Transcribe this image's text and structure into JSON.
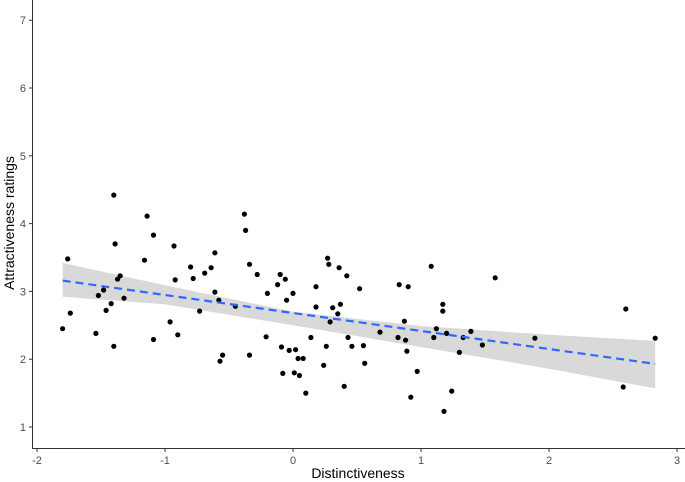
{
  "chart_data": {
    "type": "scatter",
    "xlabel": "Distinctiveness",
    "ylabel": "Attractiveness ratings",
    "xlim": [
      -2.05,
      3.05
    ],
    "ylim": [
      0.75,
      7.05
    ],
    "x_ticks": [
      -2,
      -1,
      0,
      1,
      2,
      3
    ],
    "y_ticks": [
      1,
      2,
      3,
      4,
      5,
      6,
      7
    ],
    "grid": false,
    "points": [
      {
        "x": -1.8,
        "y": 2.45
      },
      {
        "x": -1.76,
        "y": 3.48
      },
      {
        "x": -1.74,
        "y": 2.68
      },
      {
        "x": -1.54,
        "y": 2.38
      },
      {
        "x": -1.52,
        "y": 2.94
      },
      {
        "x": -1.48,
        "y": 3.02
      },
      {
        "x": -1.46,
        "y": 2.72
      },
      {
        "x": -1.42,
        "y": 2.82
      },
      {
        "x": -1.4,
        "y": 4.42
      },
      {
        "x": -1.4,
        "y": 2.19
      },
      {
        "x": -1.39,
        "y": 3.7
      },
      {
        "x": -1.37,
        "y": 3.18
      },
      {
        "x": -1.35,
        "y": 3.23
      },
      {
        "x": -1.32,
        "y": 2.9
      },
      {
        "x": -1.16,
        "y": 3.46
      },
      {
        "x": -1.14,
        "y": 4.11
      },
      {
        "x": -1.09,
        "y": 3.83
      },
      {
        "x": -1.09,
        "y": 2.29
      },
      {
        "x": -0.96,
        "y": 2.55
      },
      {
        "x": -0.93,
        "y": 3.67
      },
      {
        "x": -0.92,
        "y": 3.17
      },
      {
        "x": -0.9,
        "y": 2.36
      },
      {
        "x": -0.8,
        "y": 3.36
      },
      {
        "x": -0.78,
        "y": 3.19
      },
      {
        "x": -0.73,
        "y": 2.71
      },
      {
        "x": -0.69,
        "y": 3.27
      },
      {
        "x": -0.64,
        "y": 3.35
      },
      {
        "x": -0.61,
        "y": 3.57
      },
      {
        "x": -0.61,
        "y": 2.99
      },
      {
        "x": -0.58,
        "y": 2.87
      },
      {
        "x": -0.57,
        "y": 1.97
      },
      {
        "x": -0.55,
        "y": 2.06
      },
      {
        "x": -0.45,
        "y": 2.78
      },
      {
        "x": -0.38,
        "y": 4.14
      },
      {
        "x": -0.37,
        "y": 3.9
      },
      {
        "x": -0.34,
        "y": 3.4
      },
      {
        "x": -0.34,
        "y": 2.06
      },
      {
        "x": -0.28,
        "y": 3.25
      },
      {
        "x": -0.21,
        "y": 2.33
      },
      {
        "x": -0.2,
        "y": 2.97
      },
      {
        "x": -0.12,
        "y": 3.1
      },
      {
        "x": -0.1,
        "y": 3.25
      },
      {
        "x": -0.09,
        "y": 2.18
      },
      {
        "x": -0.08,
        "y": 1.79
      },
      {
        "x": -0.06,
        "y": 3.18
      },
      {
        "x": -0.05,
        "y": 2.87
      },
      {
        "x": -0.03,
        "y": 2.13
      },
      {
        "x": 0.0,
        "y": 2.97
      },
      {
        "x": 0.01,
        "y": 1.8
      },
      {
        "x": 0.02,
        "y": 2.14
      },
      {
        "x": 0.04,
        "y": 2.01
      },
      {
        "x": 0.05,
        "y": 1.76
      },
      {
        "x": 0.08,
        "y": 2.01
      },
      {
        "x": 0.1,
        "y": 1.5
      },
      {
        "x": 0.14,
        "y": 2.32
      },
      {
        "x": 0.18,
        "y": 3.07
      },
      {
        "x": 0.18,
        "y": 2.77
      },
      {
        "x": 0.24,
        "y": 1.91
      },
      {
        "x": 0.26,
        "y": 2.19
      },
      {
        "x": 0.27,
        "y": 3.49
      },
      {
        "x": 0.28,
        "y": 3.4
      },
      {
        "x": 0.29,
        "y": 2.55
      },
      {
        "x": 0.31,
        "y": 2.76
      },
      {
        "x": 0.35,
        "y": 2.67
      },
      {
        "x": 0.36,
        "y": 3.35
      },
      {
        "x": 0.37,
        "y": 2.81
      },
      {
        "x": 0.4,
        "y": 1.6
      },
      {
        "x": 0.42,
        "y": 3.23
      },
      {
        "x": 0.43,
        "y": 2.32
      },
      {
        "x": 0.46,
        "y": 2.19
      },
      {
        "x": 0.52,
        "y": 3.04
      },
      {
        "x": 0.55,
        "y": 2.2
      },
      {
        "x": 0.56,
        "y": 1.94
      },
      {
        "x": 0.68,
        "y": 2.4
      },
      {
        "x": 0.82,
        "y": 2.32
      },
      {
        "x": 0.83,
        "y": 3.1
      },
      {
        "x": 0.87,
        "y": 2.56
      },
      {
        "x": 0.88,
        "y": 2.28
      },
      {
        "x": 0.89,
        "y": 2.12
      },
      {
        "x": 0.9,
        "y": 3.07
      },
      {
        "x": 0.92,
        "y": 1.44
      },
      {
        "x": 0.97,
        "y": 1.82
      },
      {
        "x": 1.08,
        "y": 3.37
      },
      {
        "x": 1.1,
        "y": 2.32
      },
      {
        "x": 1.12,
        "y": 2.45
      },
      {
        "x": 1.17,
        "y": 2.81
      },
      {
        "x": 1.17,
        "y": 2.71
      },
      {
        "x": 1.18,
        "y": 1.23
      },
      {
        "x": 1.2,
        "y": 2.38
      },
      {
        "x": 1.24,
        "y": 1.53
      },
      {
        "x": 1.3,
        "y": 2.1
      },
      {
        "x": 1.33,
        "y": 2.32
      },
      {
        "x": 1.39,
        "y": 2.41
      },
      {
        "x": 1.48,
        "y": 2.21
      },
      {
        "x": 1.58,
        "y": 3.2
      },
      {
        "x": 1.89,
        "y": 2.31
      },
      {
        "x": 2.58,
        "y": 1.59
      },
      {
        "x": 2.6,
        "y": 2.74
      },
      {
        "x": 2.83,
        "y": 2.31
      }
    ],
    "trend_line": {
      "style": "dashed",
      "x": [
        -1.8,
        2.83
      ],
      "y": [
        3.16,
        1.93
      ]
    },
    "confidence_band": {
      "x": [
        -1.8,
        -1.0,
        0.0,
        1.0,
        2.0,
        2.83
      ],
      "lower": [
        2.92,
        2.81,
        2.5,
        2.18,
        1.86,
        1.57
      ],
      "upper": [
        3.42,
        3.09,
        2.7,
        2.49,
        2.36,
        2.27
      ]
    },
    "colors": {
      "points": "#000000",
      "trend_line": "#3366FF",
      "band": "#d9d9d9",
      "axis": "#333333",
      "tick_label": "#4d4d4d",
      "axis_title": "#000000",
      "background": "#ffffff"
    }
  }
}
